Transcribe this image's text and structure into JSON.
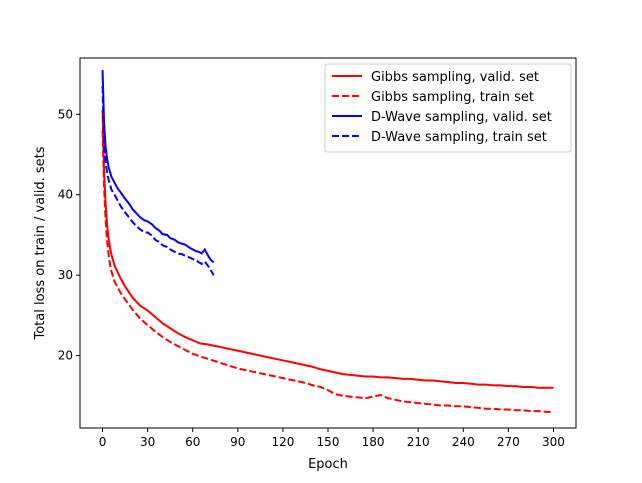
{
  "chart_data": {
    "type": "line",
    "title": "",
    "xlabel": "Epoch",
    "ylabel": "Total loss on train / valid. sets",
    "xlim": [
      -15,
      315
    ],
    "ylim": [
      11,
      57
    ],
    "xticks": [
      0,
      30,
      60,
      90,
      120,
      150,
      180,
      210,
      240,
      270,
      300
    ],
    "yticks": [
      20,
      30,
      40,
      50
    ],
    "grid": false,
    "legend_position": "top-right",
    "series": [
      {
        "name": "Gibbs sampling, valid. set",
        "color": "#ff0000",
        "style": "solid",
        "x": [
          0,
          1,
          2,
          3,
          4,
          5,
          6,
          8,
          10,
          12,
          15,
          20,
          25,
          30,
          35,
          40,
          45,
          50,
          55,
          60,
          65,
          70,
          75,
          80,
          85,
          90,
          95,
          100,
          105,
          110,
          115,
          120,
          125,
          130,
          135,
          140,
          145,
          150,
          155,
          160,
          165,
          170,
          175,
          180,
          185,
          190,
          195,
          200,
          205,
          210,
          215,
          220,
          225,
          230,
          235,
          240,
          245,
          250,
          255,
          260,
          265,
          270,
          275,
          280,
          285,
          290,
          295,
          300
        ],
        "y": [
          50.5,
          43.0,
          39.0,
          36.3,
          34.6,
          33.4,
          32.5,
          31.2,
          30.4,
          29.6,
          28.6,
          27.2,
          26.2,
          25.6,
          24.8,
          24.0,
          23.4,
          22.8,
          22.3,
          21.9,
          21.5,
          21.4,
          21.2,
          21.0,
          20.8,
          20.6,
          20.4,
          20.2,
          20.0,
          19.8,
          19.6,
          19.4,
          19.2,
          19.0,
          18.8,
          18.6,
          18.3,
          18.1,
          17.9,
          17.7,
          17.6,
          17.5,
          17.4,
          17.4,
          17.3,
          17.3,
          17.2,
          17.1,
          17.1,
          17.0,
          16.9,
          16.9,
          16.8,
          16.7,
          16.6,
          16.6,
          16.5,
          16.4,
          16.4,
          16.3,
          16.3,
          16.2,
          16.2,
          16.1,
          16.1,
          16.0,
          16.0,
          16.0
        ]
      },
      {
        "name": "Gibbs sampling, train set",
        "color": "#ff0000",
        "style": "dashed",
        "x": [
          0,
          1,
          2,
          3,
          4,
          5,
          6,
          8,
          10,
          12,
          15,
          20,
          25,
          30,
          35,
          40,
          45,
          50,
          55,
          60,
          65,
          70,
          75,
          80,
          85,
          90,
          95,
          100,
          105,
          110,
          115,
          120,
          125,
          130,
          135,
          140,
          145,
          150,
          155,
          160,
          165,
          170,
          175,
          180,
          185,
          190,
          195,
          200,
          205,
          210,
          215,
          220,
          225,
          230,
          235,
          240,
          245,
          250,
          255,
          260,
          265,
          270,
          275,
          280,
          285,
          290,
          295,
          300
        ],
        "y": [
          48.0,
          41.0,
          37.0,
          34.3,
          32.6,
          31.3,
          30.4,
          29.2,
          28.5,
          27.8,
          27.0,
          25.7,
          24.6,
          23.8,
          23.0,
          22.3,
          21.7,
          21.2,
          20.7,
          20.2,
          19.9,
          19.6,
          19.3,
          19.0,
          18.7,
          18.4,
          18.2,
          18.0,
          17.8,
          17.6,
          17.4,
          17.2,
          17.0,
          16.8,
          16.6,
          16.3,
          16.1,
          15.7,
          15.2,
          15.0,
          14.9,
          14.8,
          14.7,
          14.9,
          15.1,
          14.7,
          14.5,
          14.3,
          14.2,
          14.1,
          14.0,
          13.9,
          13.8,
          13.8,
          13.7,
          13.7,
          13.6,
          13.5,
          13.4,
          13.4,
          13.3,
          13.3,
          13.2,
          13.2,
          13.1,
          13.1,
          13.0,
          13.0
        ]
      },
      {
        "name": "D-Wave sampling, valid. set",
        "color": "#0000ff",
        "style": "solid",
        "x": [
          0,
          1,
          2,
          3,
          4,
          5,
          6,
          8,
          10,
          12,
          15,
          18,
          20,
          22,
          25,
          28,
          30,
          33,
          35,
          38,
          40,
          43,
          45,
          48,
          50,
          53,
          55,
          58,
          60,
          62,
          64,
          66,
          68,
          70,
          72,
          74
        ],
        "y": [
          55.5,
          49.0,
          46.0,
          44.5,
          43.5,
          42.8,
          42.2,
          41.5,
          40.8,
          40.3,
          39.5,
          38.8,
          38.2,
          37.8,
          37.2,
          36.8,
          36.7,
          36.3,
          35.9,
          35.5,
          35.1,
          35.0,
          34.6,
          34.4,
          34.1,
          33.9,
          33.8,
          33.4,
          33.2,
          33.0,
          32.9,
          32.7,
          33.2,
          32.5,
          31.9,
          31.6
        ]
      },
      {
        "name": "D-Wave sampling, train set",
        "color": "#0000ff",
        "style": "dashed",
        "x": [
          0,
          1,
          2,
          3,
          4,
          5,
          6,
          8,
          10,
          12,
          15,
          18,
          20,
          22,
          25,
          28,
          30,
          33,
          35,
          38,
          40,
          43,
          45,
          48,
          50,
          53,
          55,
          58,
          60,
          62,
          64,
          66,
          68,
          70,
          72,
          74
        ],
        "y": [
          53.5,
          46.5,
          44.0,
          42.8,
          41.9,
          41.2,
          40.6,
          40.0,
          39.3,
          38.6,
          37.8,
          37.1,
          36.6,
          36.2,
          35.7,
          35.3,
          35.3,
          34.9,
          34.4,
          34.1,
          33.7,
          33.5,
          33.2,
          32.9,
          32.7,
          32.6,
          32.4,
          32.2,
          32.0,
          31.9,
          31.6,
          31.4,
          31.7,
          31.2,
          30.6,
          30.0
        ]
      }
    ]
  }
}
